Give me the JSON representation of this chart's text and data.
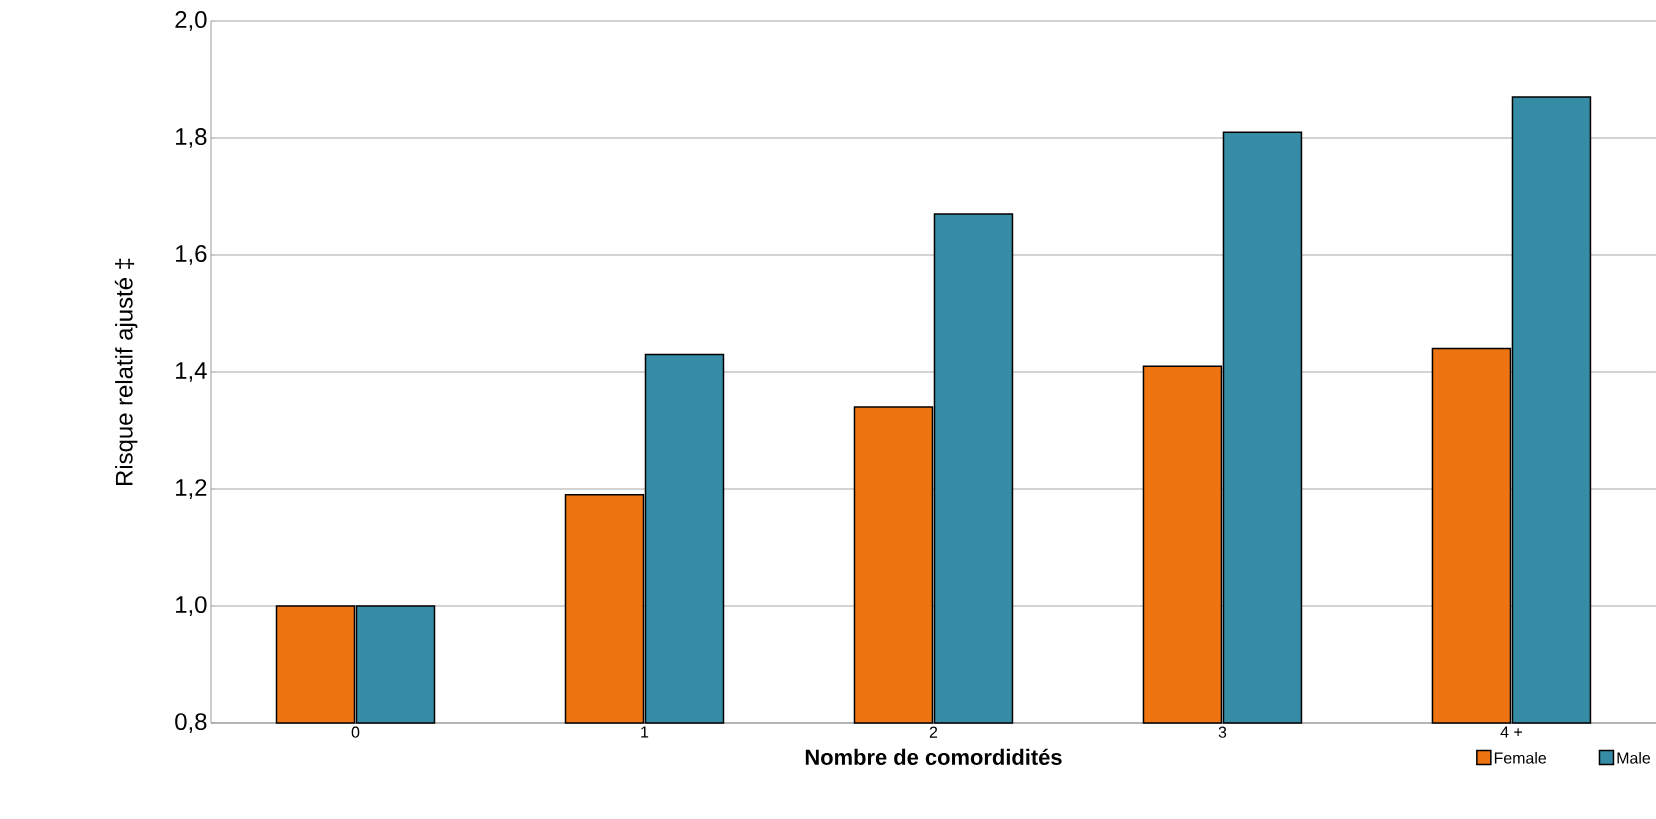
{
  "chart_data": {
    "type": "bar",
    "xlabel": "Nombre de comordidités",
    "ylabel": "Risque relatif ajusté ‡",
    "categories": [
      "0",
      "1",
      "2",
      "3",
      "4 +"
    ],
    "series": [
      {
        "name": "Female",
        "color": "#ee7411",
        "values": [
          1.0,
          1.19,
          1.34,
          1.41,
          1.44
        ]
      },
      {
        "name": "Male",
        "color": "#368ca5",
        "values": [
          1.0,
          1.43,
          1.67,
          1.81,
          1.87
        ]
      }
    ],
    "ylim": [
      0.8,
      2.0
    ],
    "yticks": [
      {
        "value": 0.8,
        "label": "0,8"
      },
      {
        "value": 1.0,
        "label": "1,0"
      },
      {
        "value": 1.2,
        "label": "1,2"
      },
      {
        "value": 1.4,
        "label": "1,4"
      },
      {
        "value": 1.6,
        "label": "1,6"
      },
      {
        "value": 1.8,
        "label": "1,8"
      },
      {
        "value": 2.0,
        "label": "2,0"
      }
    ],
    "grid": "y",
    "legend": "bottom right"
  }
}
